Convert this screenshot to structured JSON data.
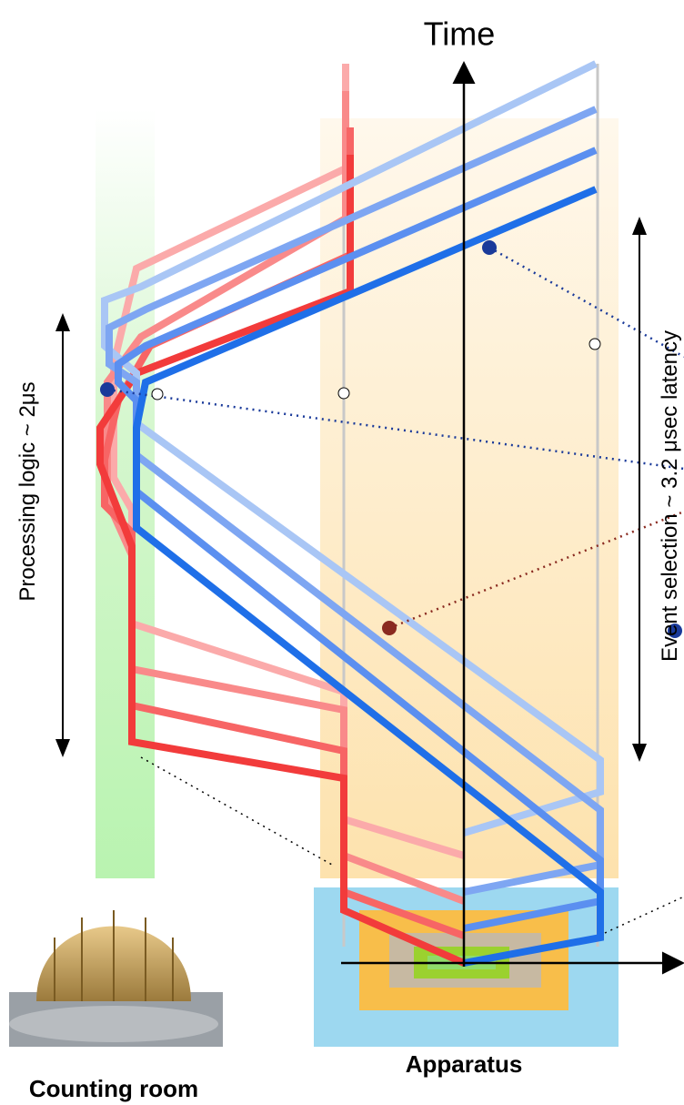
{
  "header": {
    "axis_label": "Time"
  },
  "annotations": {
    "processing": "Processing logic ~ 2μs",
    "event_selection": "Event selection ~ 3.2 μsec latency"
  },
  "labels": {
    "counting_room": "Counting room",
    "apparatus": "Apparatus"
  }
}
